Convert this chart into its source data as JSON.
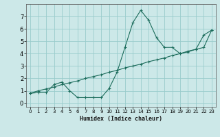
{
  "xlabel": "Humidex (Indice chaleur)",
  "background_color": "#cce8e8",
  "grid_color": "#99cccc",
  "line_color": "#1a6b5a",
  "xlim": [
    -0.5,
    23.5
  ],
  "ylim": [
    -0.3,
    8.0
  ],
  "xticks": [
    0,
    1,
    2,
    3,
    4,
    5,
    6,
    7,
    8,
    9,
    10,
    11,
    12,
    13,
    14,
    15,
    16,
    17,
    18,
    19,
    20,
    21,
    22,
    23
  ],
  "yticks": [
    0,
    1,
    2,
    3,
    4,
    5,
    6,
    7
  ],
  "line1_x": [
    0,
    1,
    2,
    3,
    4,
    5,
    6,
    7,
    8,
    9,
    10,
    11,
    12,
    13,
    14,
    15,
    16,
    17,
    18,
    19,
    20,
    21,
    22,
    23
  ],
  "line1_y": [
    0.8,
    0.85,
    0.85,
    1.5,
    1.7,
    1.0,
    0.45,
    0.45,
    0.45,
    0.45,
    1.2,
    2.5,
    4.5,
    6.5,
    7.5,
    6.7,
    5.3,
    4.5,
    4.5,
    4.0,
    4.2,
    4.35,
    5.5,
    5.9
  ],
  "line2_x": [
    0,
    1,
    2,
    3,
    4,
    5,
    6,
    7,
    8,
    9,
    10,
    11,
    12,
    13,
    14,
    15,
    16,
    17,
    18,
    19,
    20,
    21,
    22,
    23
  ],
  "line2_y": [
    0.8,
    1.0,
    1.15,
    1.3,
    1.5,
    1.65,
    1.8,
    2.0,
    2.15,
    2.3,
    2.5,
    2.65,
    2.85,
    3.0,
    3.15,
    3.35,
    3.5,
    3.65,
    3.85,
    4.0,
    4.15,
    4.35,
    4.5,
    5.9
  ],
  "figsize": [
    3.2,
    2.0
  ],
  "dpi": 100
}
